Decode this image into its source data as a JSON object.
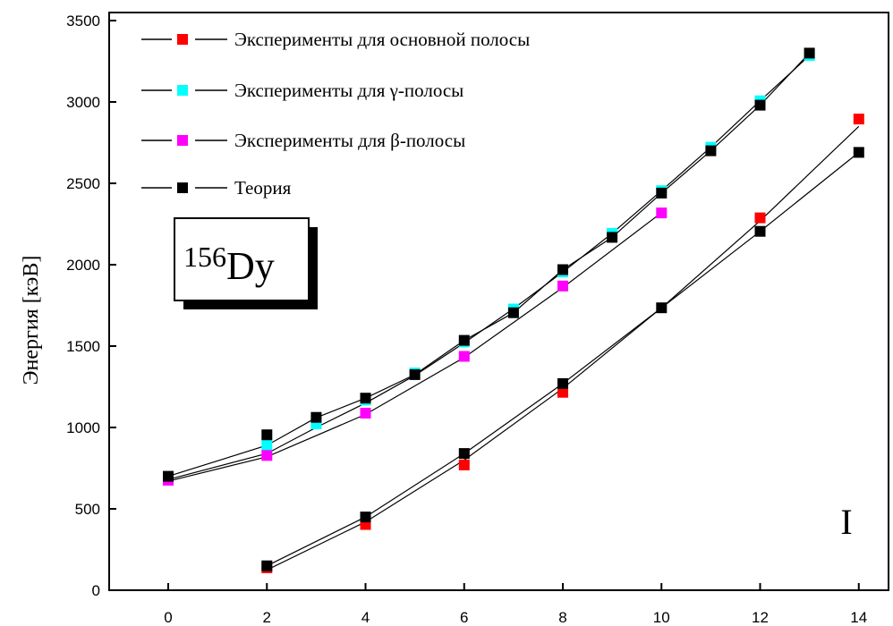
{
  "chart_data": {
    "type": "scatter",
    "ylabel": "Энергия  [кэВ]",
    "xlabel": "",
    "xlim": [
      -1,
      14.4
    ],
    "ylim": [
      0,
      3500
    ],
    "xticks": [
      0,
      2,
      4,
      6,
      8,
      10,
      12,
      14
    ],
    "yticks": [
      0,
      500,
      1000,
      1500,
      2000,
      2500,
      3000,
      3500
    ],
    "grid": false,
    "legend_position": "top-left",
    "nucleus": {
      "mass": "156",
      "symbol": "Dy"
    },
    "band_label": "I",
    "series": [
      {
        "name": "Эксперименты для основной полосы",
        "color": "#ff0000",
        "x": [
          2,
          4,
          6,
          8,
          12,
          14
        ],
        "y": [
          138,
          404,
          770,
          1216,
          2288,
          2895
        ]
      },
      {
        "name": "Эксперименты для γ-полосы",
        "color": "#00ffff",
        "x": [
          2,
          3,
          4,
          5,
          6,
          7,
          8,
          9,
          10,
          11,
          12,
          13
        ],
        "y": [
          890,
          1022,
          1168,
          1335,
          1525,
          1728,
          1955,
          2193,
          2455,
          2722,
          3007,
          3285
        ]
      },
      {
        "name": "Экcперименты для β-полосы",
        "color": "#ff00ff",
        "x": [
          0,
          2,
          4,
          6,
          8,
          10
        ],
        "y": [
          676,
          828,
          1088,
          1437,
          1869,
          2318
        ]
      },
      {
        "name": "Теория",
        "color": "#000000",
        "x": [
          2,
          4,
          6,
          8,
          10,
          12,
          14,
          0,
          2,
          3,
          4,
          5,
          6,
          7,
          8,
          9,
          10,
          11,
          12,
          13
        ],
        "y": [
          150,
          450,
          840,
          1270,
          1735,
          2205,
          2690,
          700,
          955,
          1062,
          1180,
          1325,
          1535,
          1705,
          1970,
          2168,
          2440,
          2700,
          2980,
          3300
        ]
      }
    ],
    "theory_curves": [
      {
        "x": [
          2,
          4,
          6,
          8,
          10,
          12,
          14
        ],
        "y": [
          150,
          450,
          840,
          1270,
          1735,
          2205,
          2690
        ]
      },
      {
        "x": [
          2,
          4,
          6,
          8,
          10,
          12,
          14
        ],
        "y": [
          125,
          420,
          800,
          1240,
          1735,
          2270,
          2850
        ]
      },
      {
        "x": [
          0,
          2,
          3,
          4,
          5,
          6,
          7,
          8,
          9,
          10,
          11,
          12,
          13
        ],
        "y": [
          700,
          890,
          1060,
          1180,
          1325,
          1535,
          1705,
          1970,
          2168,
          2440,
          2700,
          2980,
          3300
        ]
      },
      {
        "x": [
          0,
          2,
          3,
          4,
          5,
          6,
          7,
          8,
          9,
          10,
          11,
          12,
          13
        ],
        "y": [
          680,
          840,
          1000,
          1150,
          1320,
          1520,
          1730,
          1955,
          2193,
          2455,
          2722,
          3007,
          3285
        ]
      },
      {
        "x": [
          0,
          2,
          4,
          6,
          8,
          10
        ],
        "y": [
          670,
          820,
          1080,
          1430,
          1860,
          2320
        ]
      }
    ]
  }
}
